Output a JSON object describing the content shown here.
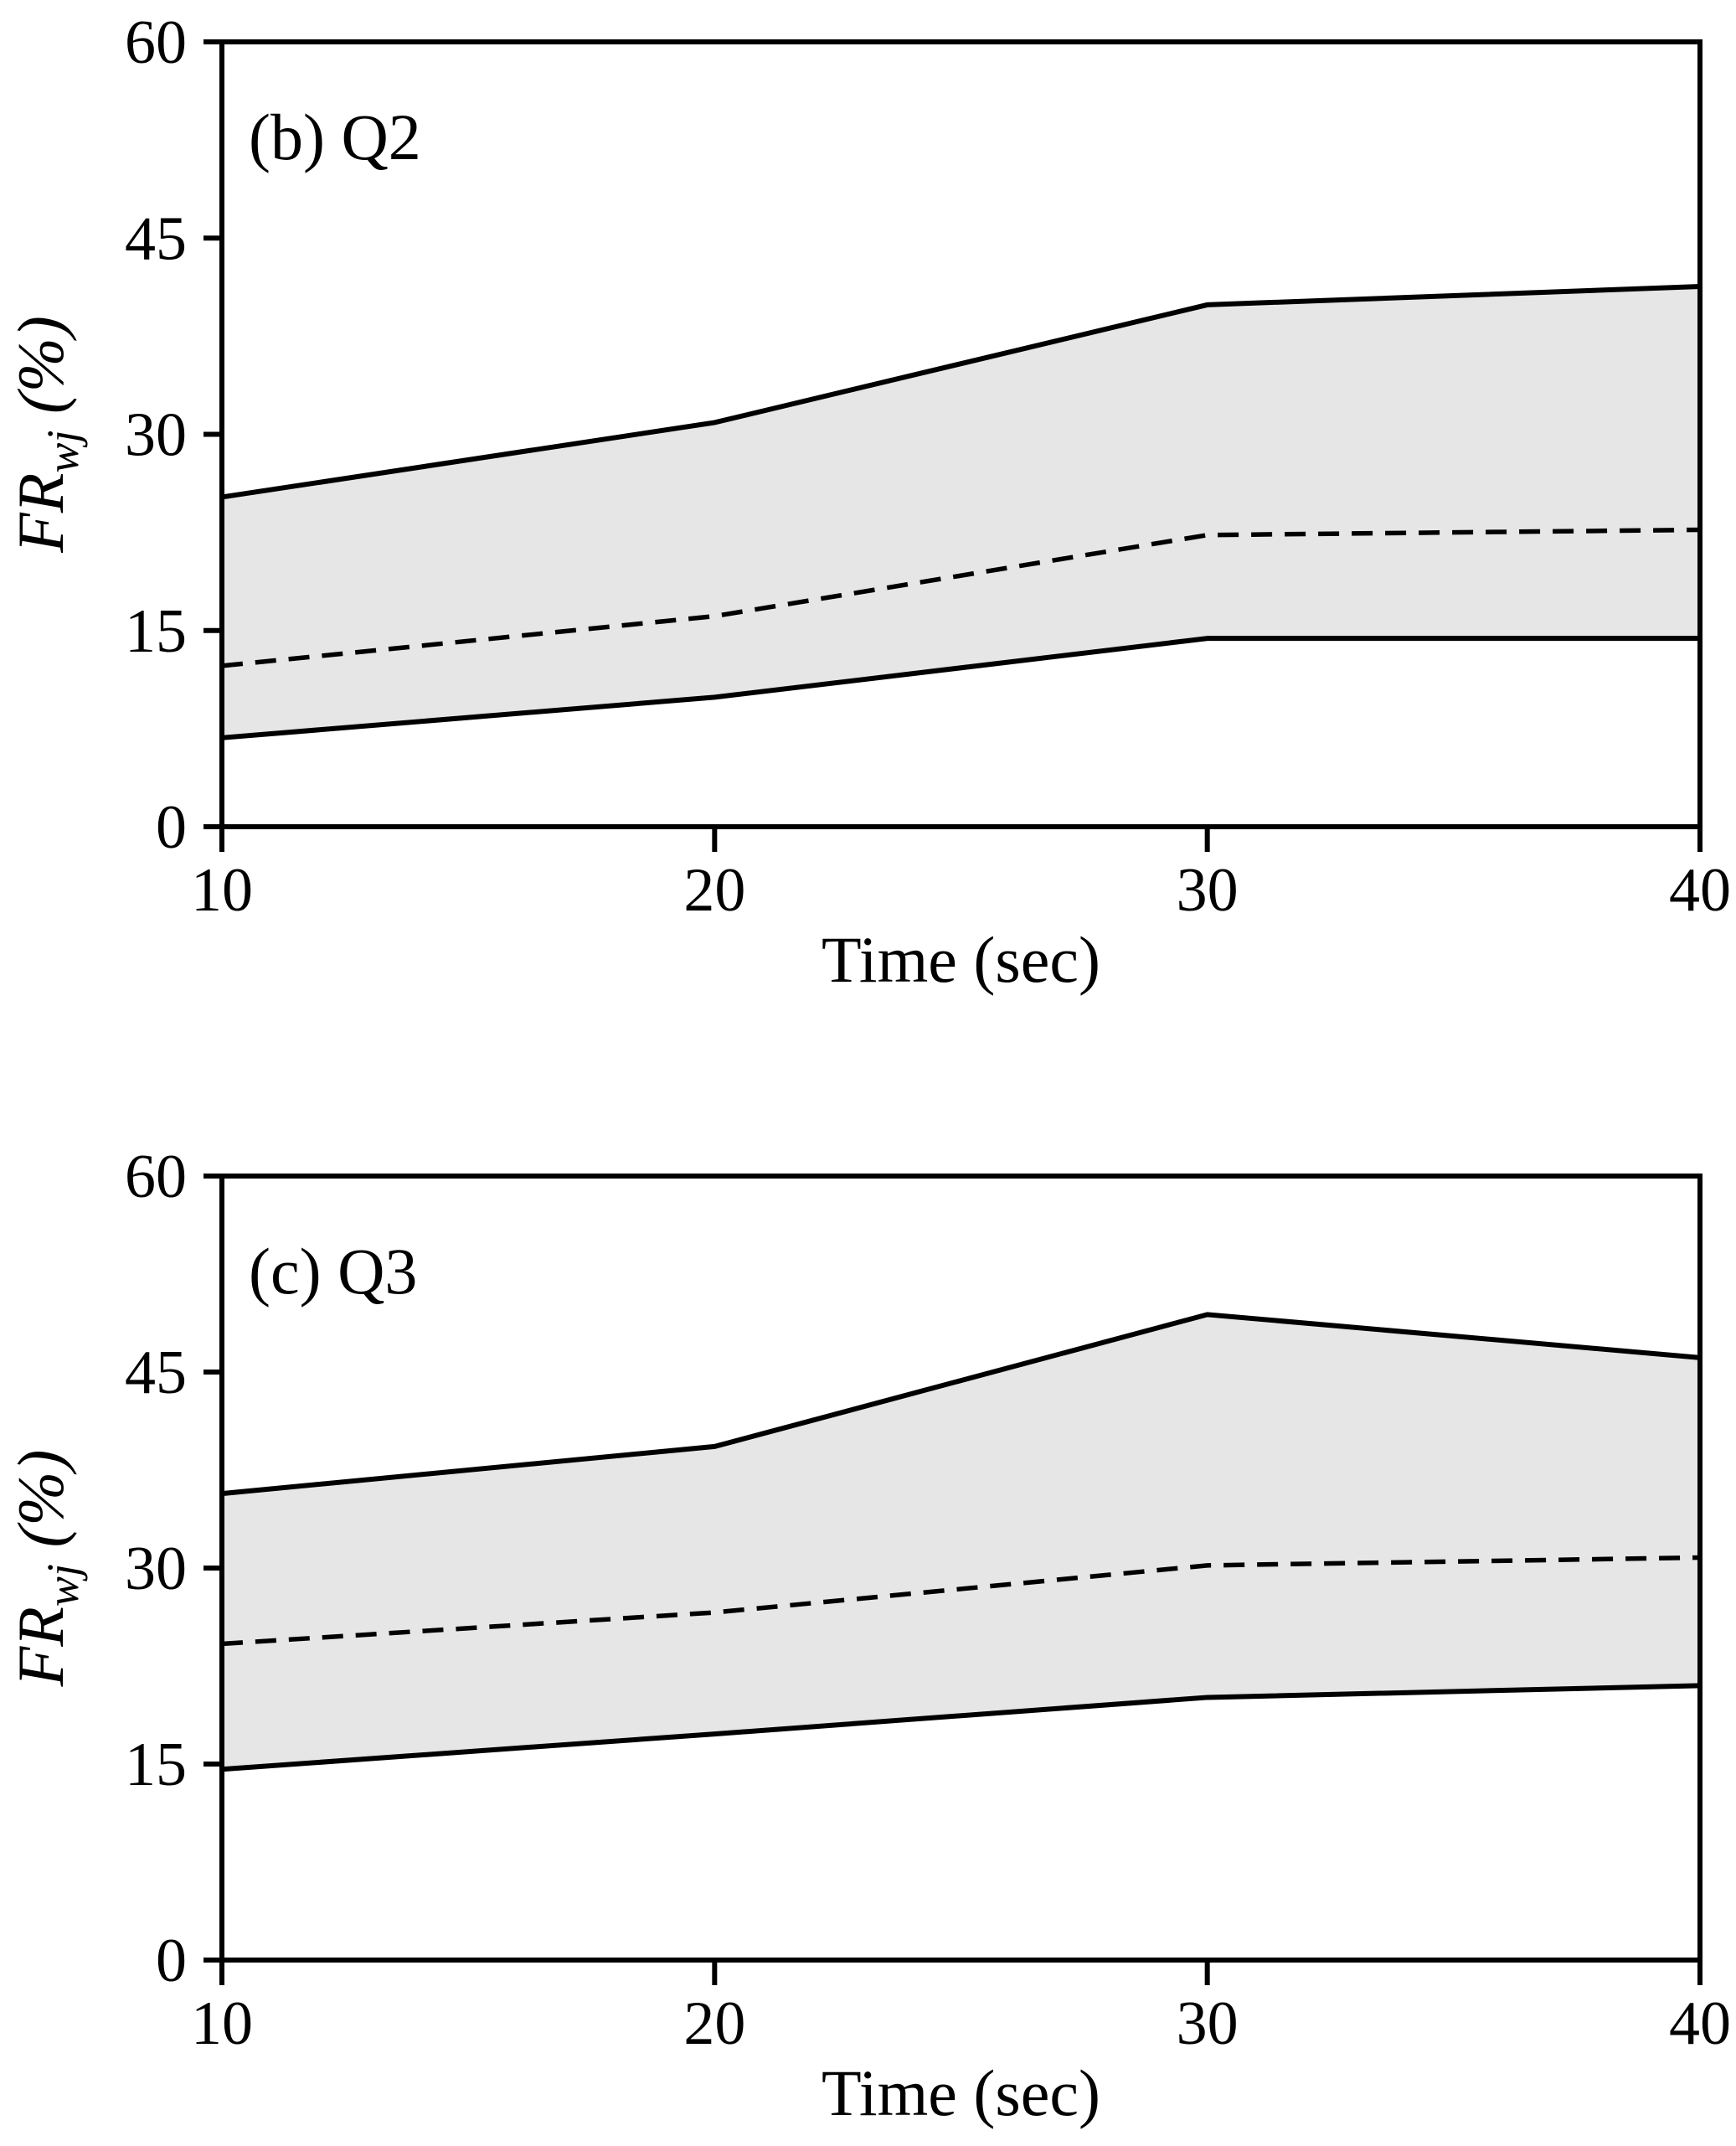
{
  "figure": {
    "background": "#ffffff",
    "text_color": "#000000"
  },
  "chart_data": [
    {
      "type": "area",
      "title": "(b) Q2",
      "xlabel": "Time (sec)",
      "ylabel": "FR_wj (%)",
      "ylabel_parts": {
        "main": "FR",
        "sub": "wj",
        "rest": " (%)"
      },
      "x": [
        10,
        20,
        30,
        40
      ],
      "xlim": [
        10,
        40
      ],
      "ylim": [
        0,
        60
      ],
      "x_ticks": [
        10,
        20,
        30,
        40
      ],
      "y_ticks": [
        0,
        15,
        30,
        45,
        60
      ],
      "grid": false,
      "legend": "none",
      "band_fill": "#e6e6e6",
      "line_color": "#000000",
      "series": [
        {
          "name": "upper bound",
          "style": "solid",
          "values": [
            25.2,
            30.9,
            39.9,
            41.3
          ]
        },
        {
          "name": "median",
          "style": "dashed",
          "values": [
            12.3,
            16.1,
            22.3,
            22.7
          ]
        },
        {
          "name": "lower bound",
          "style": "solid",
          "values": [
            6.8,
            9.9,
            14.4,
            14.4
          ]
        }
      ]
    },
    {
      "type": "area",
      "title": "(c) Q3",
      "xlabel": "Time (sec)",
      "ylabel": "FR_wj (%)",
      "ylabel_parts": {
        "main": "FR",
        "sub": "wj",
        "rest": " (%)"
      },
      "x": [
        10,
        20,
        30,
        40
      ],
      "xlim": [
        10,
        40
      ],
      "ylim": [
        0,
        60
      ],
      "x_ticks": [
        10,
        20,
        30,
        40
      ],
      "y_ticks": [
        0,
        15,
        30,
        45,
        60
      ],
      "grid": false,
      "legend": "none",
      "band_fill": "#e6e6e6",
      "line_color": "#000000",
      "series": [
        {
          "name": "upper bound",
          "style": "solid",
          "values": [
            35.7,
            39.3,
            49.4,
            46.1
          ]
        },
        {
          "name": "median",
          "style": "dashed",
          "values": [
            24.2,
            26.6,
            30.2,
            30.8
          ]
        },
        {
          "name": "lower bound",
          "style": "solid",
          "values": [
            14.6,
            17.3,
            20.1,
            21.0
          ]
        }
      ]
    }
  ]
}
